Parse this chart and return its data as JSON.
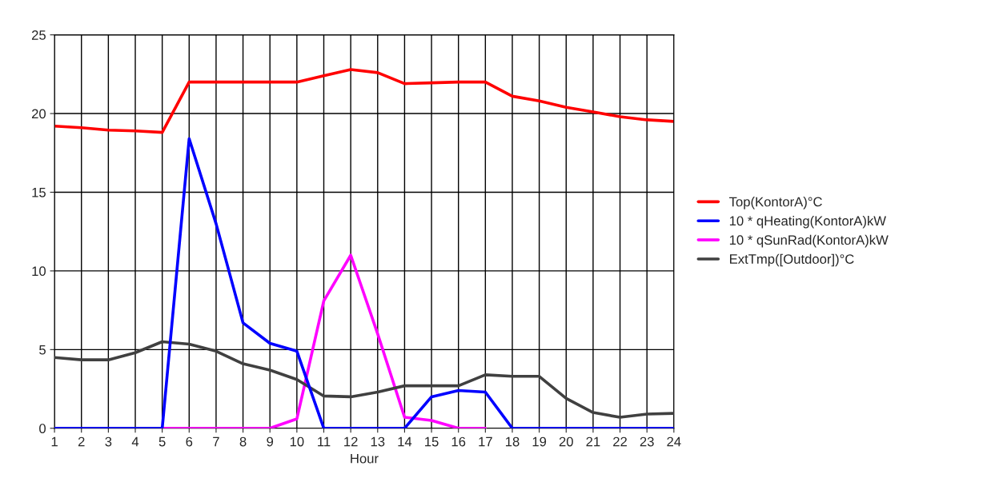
{
  "chart_data": {
    "type": "line",
    "xlabel": "Hour",
    "x": [
      1,
      2,
      3,
      4,
      5,
      6,
      7,
      8,
      9,
      10,
      11,
      12,
      13,
      14,
      15,
      16,
      17,
      18,
      19,
      20,
      21,
      22,
      23,
      24
    ],
    "series": [
      {
        "name": "Top(KontorA)°C",
        "color": "#ff0000",
        "values": [
          19.2,
          19.1,
          18.95,
          18.9,
          18.8,
          22.0,
          22.0,
          22.0,
          22.0,
          22.0,
          22.4,
          22.8,
          22.6,
          21.9,
          21.95,
          22.0,
          22.0,
          21.1,
          20.8,
          20.4,
          20.1,
          19.8,
          19.6,
          19.5
        ]
      },
      {
        "name": "10 * qHeating(KontorA)kW",
        "color": "#0000ff",
        "values": [
          0,
          0,
          0,
          0,
          0,
          18.4,
          13.0,
          6.7,
          5.4,
          4.9,
          0,
          0,
          0,
          0,
          2.0,
          2.4,
          2.3,
          0,
          0,
          0,
          0,
          0,
          0,
          0
        ]
      },
      {
        "name": "10 * qSunRad(KontorA)kW",
        "color": "#ff00ff",
        "values": [
          null,
          null,
          null,
          null,
          0,
          0,
          0,
          0,
          0,
          0.6,
          8.1,
          11.0,
          6.0,
          0.7,
          0.5,
          0,
          0,
          null,
          null,
          null,
          null,
          null,
          null,
          null
        ]
      },
      {
        "name": "ExtTmp([Outdoor])°C",
        "color": "#404040",
        "values": [
          4.5,
          4.35,
          4.35,
          4.8,
          5.5,
          5.35,
          4.9,
          4.1,
          3.7,
          3.1,
          2.05,
          2.0,
          2.3,
          2.7,
          2.7,
          2.7,
          3.4,
          3.3,
          3.3,
          1.9,
          1.0,
          0.7,
          0.9,
          0.95
        ]
      }
    ],
    "xlim": [
      1,
      24
    ],
    "xticks": [
      1,
      2,
      3,
      4,
      5,
      6,
      7,
      8,
      9,
      10,
      11,
      12,
      13,
      14,
      15,
      16,
      17,
      18,
      19,
      20,
      21,
      22,
      23,
      24
    ],
    "ylim": [
      0,
      25
    ],
    "yticks": [
      0,
      5,
      10,
      15,
      20,
      25
    ],
    "grid": true,
    "legend": "right",
    "marker": "none",
    "line_style": "solid"
  }
}
